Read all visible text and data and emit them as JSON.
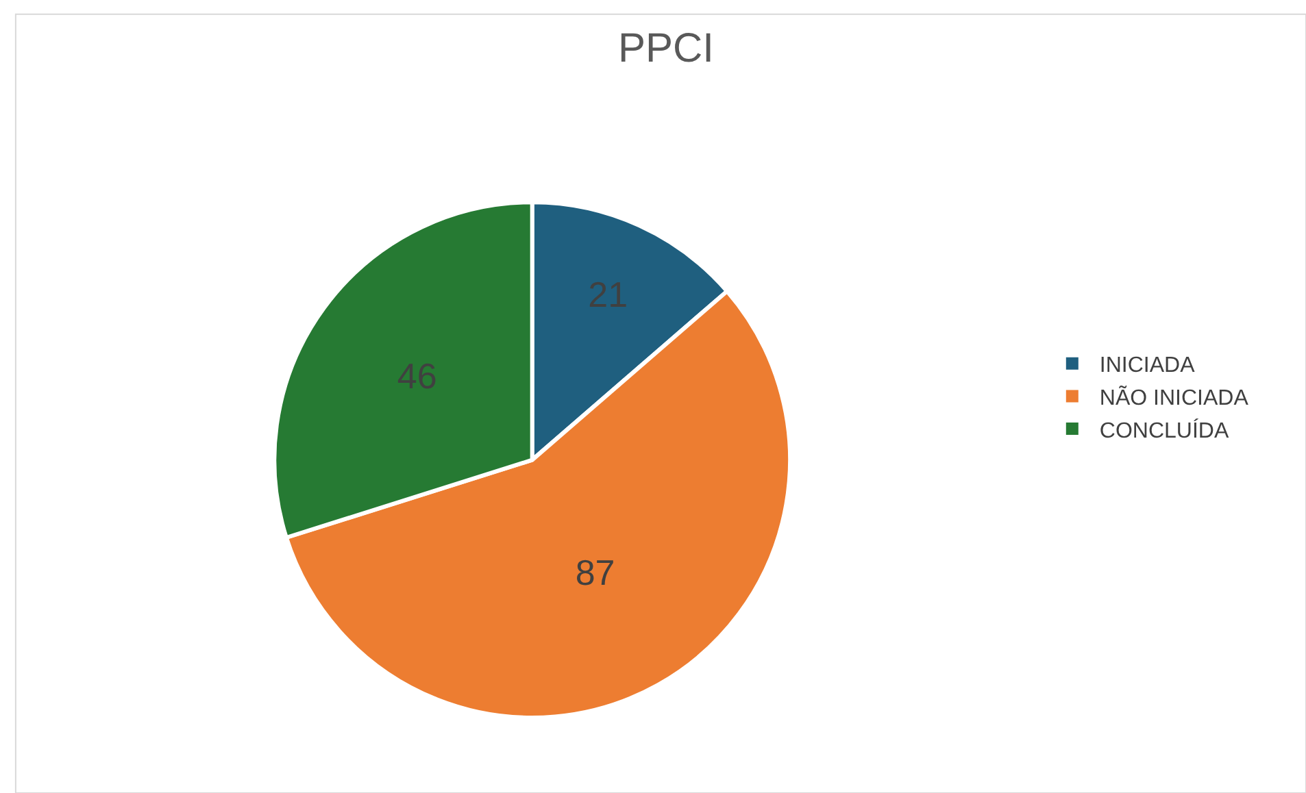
{
  "chart_data": {
    "type": "pie",
    "title": "PPCI",
    "categories": [
      "INICIADA",
      "NÃO INICIADA",
      "CONCLUÍDA"
    ],
    "values": [
      21,
      87,
      46
    ],
    "colors": [
      "#1f5f7f",
      "#ed7d31",
      "#267a33"
    ],
    "data_labels": true,
    "legend": "right"
  }
}
